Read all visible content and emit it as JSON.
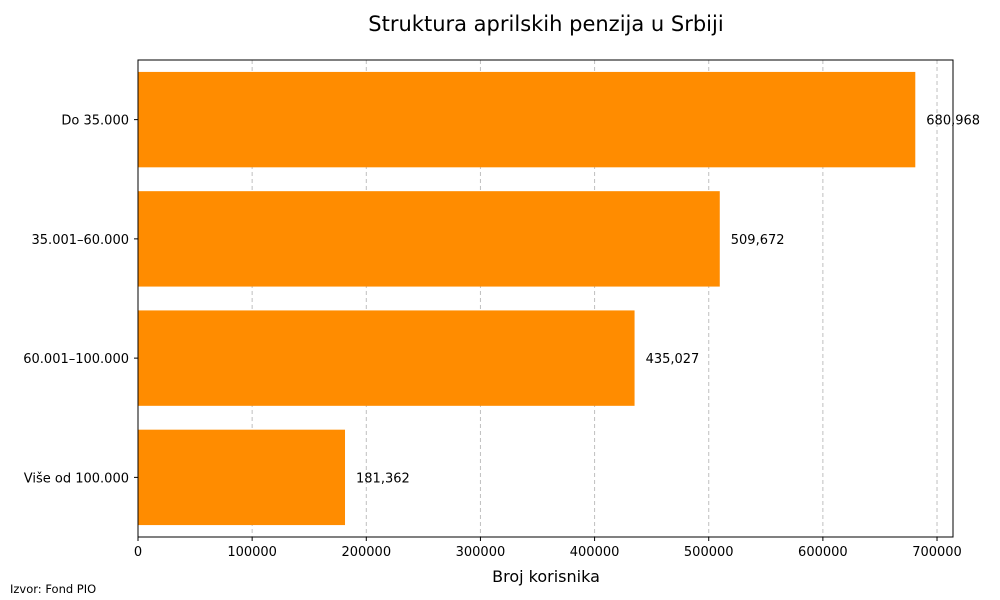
{
  "chart_data": {
    "type": "bar",
    "orientation": "horizontal",
    "title": "Struktura aprilskih penzija u Srbiji",
    "xlabel": "Broj korisnika",
    "ylabel": "",
    "categories": [
      "Do 35.000",
      "35.001–60.000",
      "60.001–100.000",
      "Više od 100.000"
    ],
    "values": [
      680968,
      509672,
      435027,
      181362
    ],
    "value_labels": [
      "680,968",
      "509,672",
      "435,027",
      "181,362"
    ],
    "xlim": [
      0,
      714000
    ],
    "x_ticks": [
      0,
      100000,
      200000,
      300000,
      400000,
      500000,
      600000,
      700000
    ],
    "x_tick_labels": [
      "0",
      "100000",
      "200000",
      "300000",
      "400000",
      "500000",
      "600000",
      "700000"
    ],
    "grid": "x-dashed",
    "bar_color": "#ff8c00"
  },
  "footer": {
    "source": "Izvor: Fond PIO"
  }
}
